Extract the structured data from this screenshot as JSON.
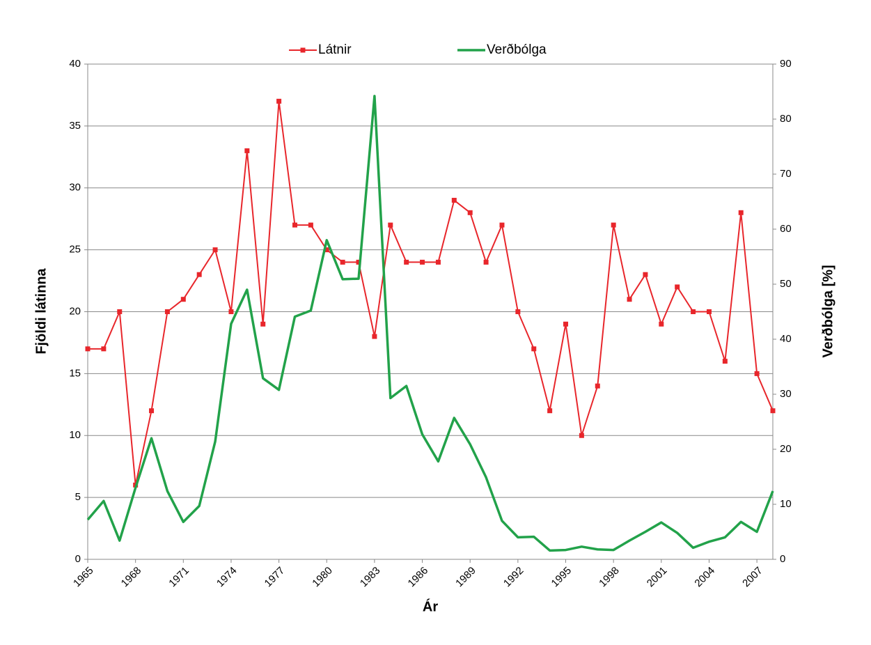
{
  "chart_data": {
    "type": "line",
    "x_label": "Ár",
    "y_label": "Fjöldi látinna",
    "y2_label": "Verðbólga [%]",
    "x": [
      1965,
      1966,
      1967,
      1968,
      1969,
      1970,
      1971,
      1972,
      1973,
      1974,
      1975,
      1976,
      1977,
      1978,
      1979,
      1980,
      1981,
      1982,
      1983,
      1984,
      1985,
      1986,
      1987,
      1988,
      1989,
      1990,
      1991,
      1992,
      1993,
      1994,
      1995,
      1996,
      1997,
      1998,
      1999,
      2000,
      2001,
      2002,
      2003,
      2004,
      2005,
      2006,
      2007,
      2008
    ],
    "xlim": [
      1965,
      2008
    ],
    "xticks": [
      1965,
      1968,
      1971,
      1974,
      1977,
      1980,
      1983,
      1986,
      1989,
      1992,
      1995,
      1998,
      2001,
      2004,
      2007
    ],
    "ylim": [
      0,
      40
    ],
    "yticks": [
      0,
      5,
      10,
      15,
      20,
      25,
      30,
      35,
      40
    ],
    "y2lim": [
      0,
      90
    ],
    "y2ticks": [
      0,
      10,
      20,
      30,
      40,
      50,
      60,
      70,
      80,
      90
    ],
    "grid": true,
    "legend": "top",
    "series": [
      {
        "name": "Látnir",
        "color": "#e8262b",
        "markers": true,
        "values": [
          17,
          17,
          20,
          6,
          12,
          20,
          21,
          23,
          25,
          20,
          33,
          19,
          37,
          27,
          27,
          25,
          24,
          24,
          18,
          27,
          24,
          24,
          24,
          29,
          28,
          24,
          27,
          20,
          17,
          12,
          19,
          10,
          14,
          27,
          21,
          23,
          19,
          22,
          20,
          20,
          16,
          28,
          15,
          12
        ]
      },
      {
        "name": "Verðbólga",
        "color": "#22a24a",
        "axis": "y2",
        "markers": false,
        "values": [
          7.2,
          10.6,
          3.4,
          13,
          22,
          12.4,
          6.8,
          9.7,
          21.4,
          42.8,
          49,
          32.9,
          30.8,
          44.1,
          45.2,
          58,
          50.9,
          51,
          84.2,
          29.3,
          31.5,
          22.7,
          17.8,
          25.7,
          20.9,
          14.9,
          7,
          4,
          4.1,
          1.6,
          1.7,
          2.3,
          1.8,
          1.7,
          3.4,
          5,
          6.7,
          4.8,
          2.1,
          3.2,
          4,
          6.8,
          5,
          12.4
        ]
      }
    ]
  }
}
